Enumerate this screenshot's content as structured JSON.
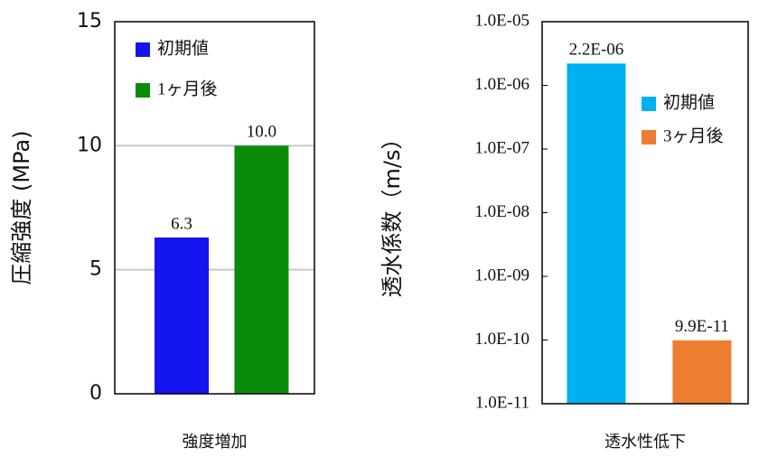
{
  "chart_data": [
    {
      "type": "bar",
      "y_label": "圧縮強度 (MPa)",
      "x_label": "強度増加",
      "categories": [
        "強度増加"
      ],
      "series": [
        {
          "name": "初期値",
          "color": "#1414f0",
          "values": [
            6.3
          ],
          "value_labels": [
            "6.3"
          ]
        },
        {
          "name": "1ヶ月後",
          "color": "#0a8c0a",
          "values": [
            10.0
          ],
          "value_labels": [
            "10.0"
          ]
        }
      ],
      "ylim": [
        0,
        15
      ],
      "yticks": [
        0,
        5,
        10,
        15
      ],
      "grid": true,
      "log_scale": false,
      "legend": "upper left"
    },
    {
      "type": "bar",
      "y_label": "透水係数（m/s）",
      "x_label": "透水性低下",
      "categories": [
        "透水性低下"
      ],
      "series": [
        {
          "name": "初期値",
          "color": "#00b0f0",
          "values": [
            2.2e-06
          ],
          "value_labels": [
            "2.2E-06"
          ]
        },
        {
          "name": "3ヶ月後",
          "color": "#ed7d31",
          "values": [
            9.9e-11
          ],
          "value_labels": [
            "9.9E-11"
          ]
        }
      ],
      "ylim": [
        1e-11,
        1e-05
      ],
      "yticks": [
        {
          "value": 1e-11,
          "label": "1.0E-11"
        },
        {
          "value": 1e-10,
          "label": "1.0E-10"
        },
        {
          "value": 1e-09,
          "label": "1.0E-09"
        },
        {
          "value": 1e-08,
          "label": "1.0E-08"
        },
        {
          "value": 1e-07,
          "label": "1.0E-07"
        },
        {
          "value": 1e-06,
          "label": "1.0E-06"
        },
        {
          "value": 1e-05,
          "label": "1.0E-05"
        }
      ],
      "grid": false,
      "log_scale": true,
      "legend": "center right"
    }
  ]
}
